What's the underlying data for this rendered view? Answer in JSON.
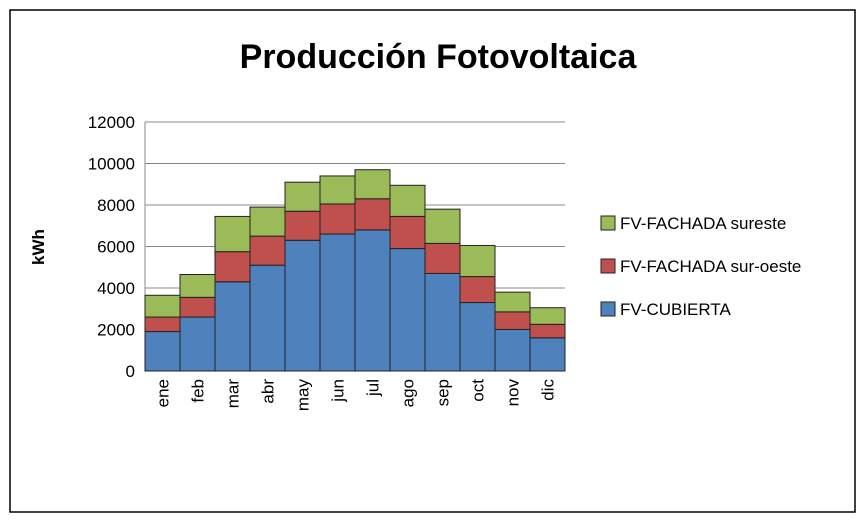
{
  "chart_data": {
    "type": "stacked_bar",
    "title": "Producción Fotovoltaica",
    "y_label": "kWh",
    "categories": [
      "ene",
      "feb",
      "mar",
      "abr",
      "may",
      "jun",
      "jul",
      "ago",
      "sep",
      "oct",
      "nov",
      "dic"
    ],
    "series": [
      {
        "name": "FV-CUBIERTA",
        "color": "#4f81bd",
        "values": [
          1900,
          2600,
          4300,
          5100,
          6300,
          6600,
          6800,
          5900,
          4700,
          3300,
          2000,
          1600
        ]
      },
      {
        "name": "FV-FACHADA sur-oeste",
        "color": "#c0504d",
        "values": [
          700,
          950,
          1450,
          1400,
          1400,
          1450,
          1500,
          1550,
          1450,
          1250,
          850,
          650
        ]
      },
      {
        "name": "FV-FACHADA sureste",
        "color": "#9bbb59",
        "values": [
          1050,
          1100,
          1700,
          1400,
          1400,
          1350,
          1400,
          1500,
          1650,
          1500,
          950,
          800
        ]
      }
    ],
    "ylim": [
      0,
      12000
    ],
    "yticks": [
      0,
      2000,
      4000,
      6000,
      8000,
      10000,
      12000
    ],
    "grid": true,
    "legend": "right"
  }
}
